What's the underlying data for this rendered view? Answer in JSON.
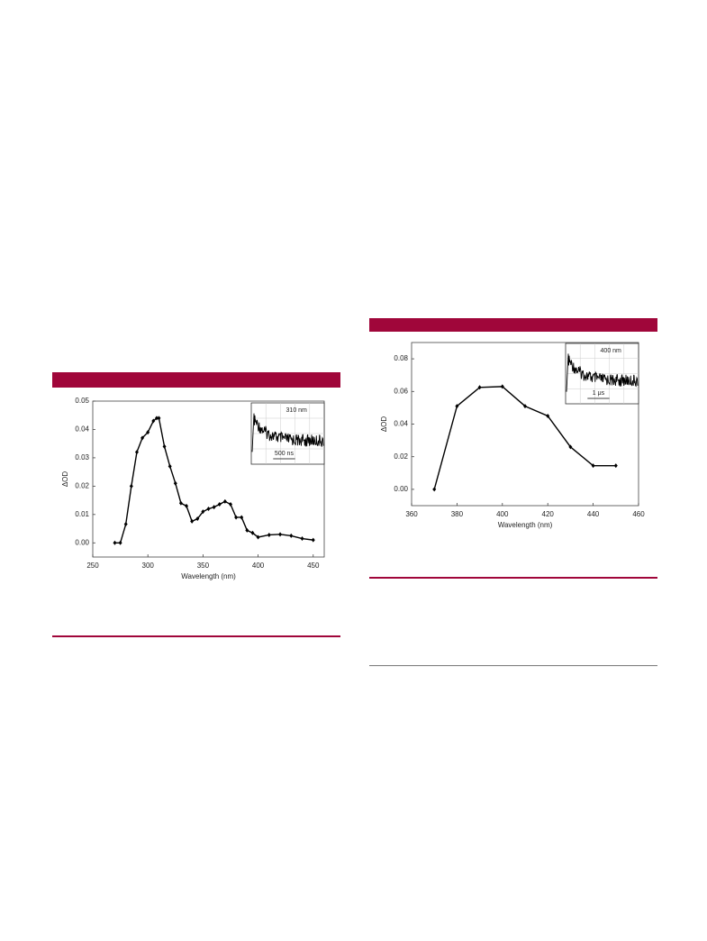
{
  "chart_data": [
    {
      "type": "line",
      "color": "#000000",
      "x": [
        270,
        275,
        280,
        285,
        290,
        295,
        300,
        305,
        308,
        310,
        315,
        320,
        325,
        330,
        335,
        340,
        345,
        350,
        355,
        360,
        365,
        370,
        375,
        380,
        385,
        390,
        395,
        400,
        410,
        420,
        430,
        440,
        450
      ],
      "values": [
        0.0,
        0.0,
        0.0066,
        0.02,
        0.032,
        0.037,
        0.039,
        0.043,
        0.044,
        0.044,
        0.034,
        0.027,
        0.021,
        0.014,
        0.013,
        0.0076,
        0.0085,
        0.011,
        0.012,
        0.0126,
        0.0136,
        0.0146,
        0.0136,
        0.009,
        0.009,
        0.0044,
        0.0035,
        0.002,
        0.0028,
        0.003,
        0.0025,
        0.0015,
        0.001
      ],
      "xlim": [
        250,
        460
      ],
      "ylim": [
        -0.005,
        0.05
      ],
      "xticks": [
        250,
        300,
        350,
        400,
        450
      ],
      "yticks": [
        {
          "value": 0,
          "label": "0.00"
        },
        {
          "value": 0.01,
          "label": "0.01"
        },
        {
          "value": 0.02,
          "label": "0.02"
        },
        {
          "value": 0.03,
          "label": "0.03"
        },
        {
          "value": 0.04,
          "label": "0.04"
        },
        {
          "value": 0.05,
          "label": "0.05"
        }
      ],
      "x_label": "Wavelength (nm)",
      "y_label": "ΔOD",
      "inset": {
        "label": "310 nm",
        "scale_label": "500 ns"
      }
    },
    {
      "type": "line",
      "color": "#000000",
      "x": [
        370,
        380,
        390,
        400,
        410,
        420,
        430,
        440,
        450
      ],
      "values": [
        0.0,
        0.051,
        0.0625,
        0.063,
        0.051,
        0.045,
        0.026,
        0.0145,
        0.0145
      ],
      "xlim": [
        360,
        460
      ],
      "ylim": [
        -0.01,
        0.09
      ],
      "xticks": [
        360,
        380,
        400,
        420,
        440,
        460
      ],
      "yticks": [
        {
          "value": 0,
          "label": "0.00"
        },
        {
          "value": 0.02,
          "label": "0.02"
        },
        {
          "value": 0.04,
          "label": "0.04"
        },
        {
          "value": 0.06,
          "label": "0.06"
        },
        {
          "value": 0.08,
          "label": "0.08"
        }
      ],
      "x_label": "Wavelength (nm)",
      "y_label": "ΔOD",
      "inset": {
        "label": "400 nm",
        "scale_label": "1 μs"
      }
    }
  ]
}
